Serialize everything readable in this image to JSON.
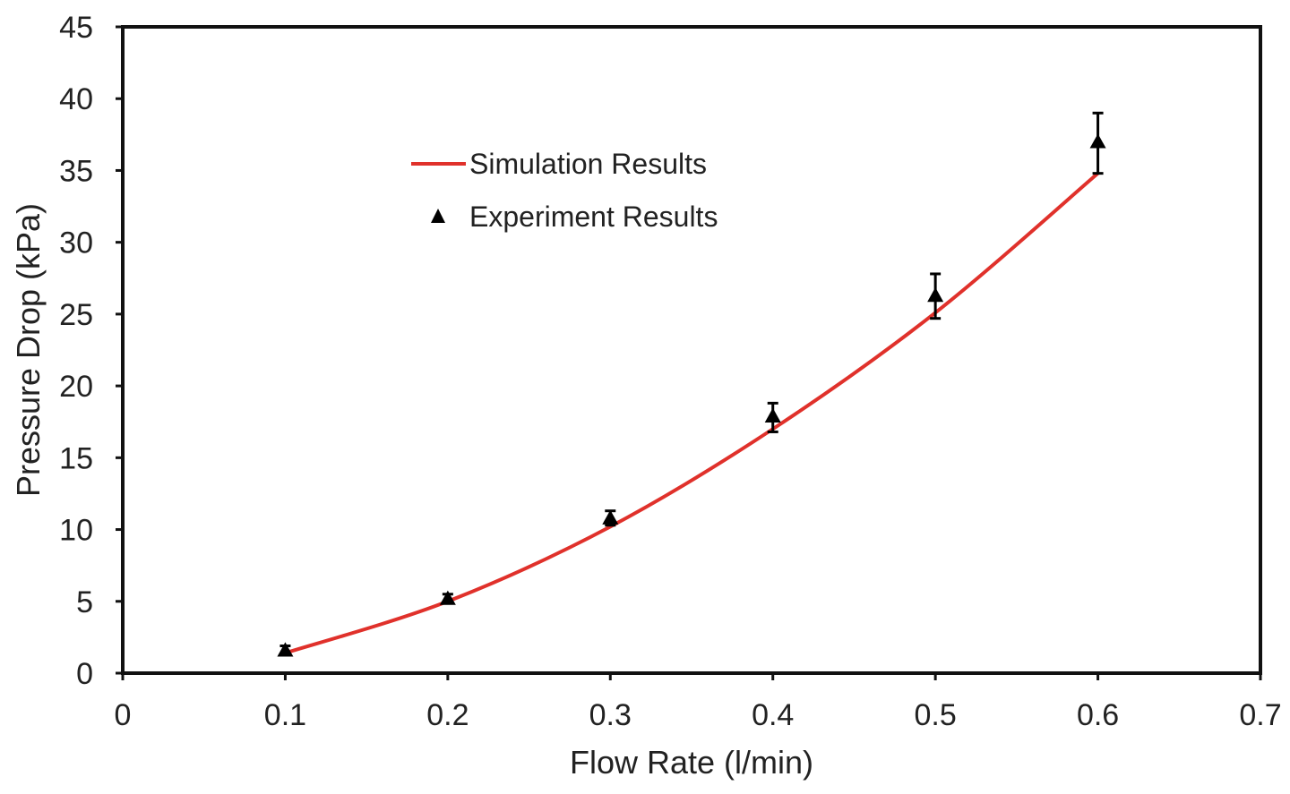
{
  "chart_data": {
    "type": "line",
    "title": "",
    "xlabel": "Flow Rate (l/min)",
    "ylabel": "Pressure Drop (kPa)",
    "xlim": [
      0,
      0.7
    ],
    "ylim": [
      0,
      45
    ],
    "x_ticks": [
      0,
      0.1,
      0.2,
      0.3,
      0.4,
      0.5,
      0.6,
      0.7
    ],
    "x_tick_labels": [
      "0",
      "0.1",
      "0.2",
      "0.3",
      "0.4",
      "0.5",
      "0.6",
      "0.7"
    ],
    "y_ticks": [
      0,
      5,
      10,
      15,
      20,
      25,
      30,
      35,
      40,
      45
    ],
    "y_tick_labels": [
      "0",
      "5",
      "10",
      "15",
      "20",
      "25",
      "30",
      "35",
      "40",
      "45"
    ],
    "grid": false,
    "legend_position": "upper-left inside",
    "series": [
      {
        "name": "Simulation Results",
        "kind": "line",
        "color": "#e0312b",
        "x": [
          0.1,
          0.2,
          0.3,
          0.4,
          0.5,
          0.6
        ],
        "y": [
          1.4,
          5.0,
          10.2,
          17.0,
          25.1,
          34.8
        ]
      },
      {
        "name": "Experiment Results",
        "kind": "scatter",
        "marker": "triangle",
        "color": "#000000",
        "x": [
          0.1,
          0.2,
          0.3,
          0.4,
          0.5,
          0.6
        ],
        "y": [
          1.6,
          5.2,
          10.8,
          17.9,
          26.3,
          37.0
        ],
        "err_low": [
          1.3,
          4.9,
          10.3,
          16.8,
          24.7,
          34.8
        ],
        "err_high": [
          1.9,
          5.5,
          11.3,
          18.8,
          27.8,
          39.0
        ]
      }
    ]
  }
}
